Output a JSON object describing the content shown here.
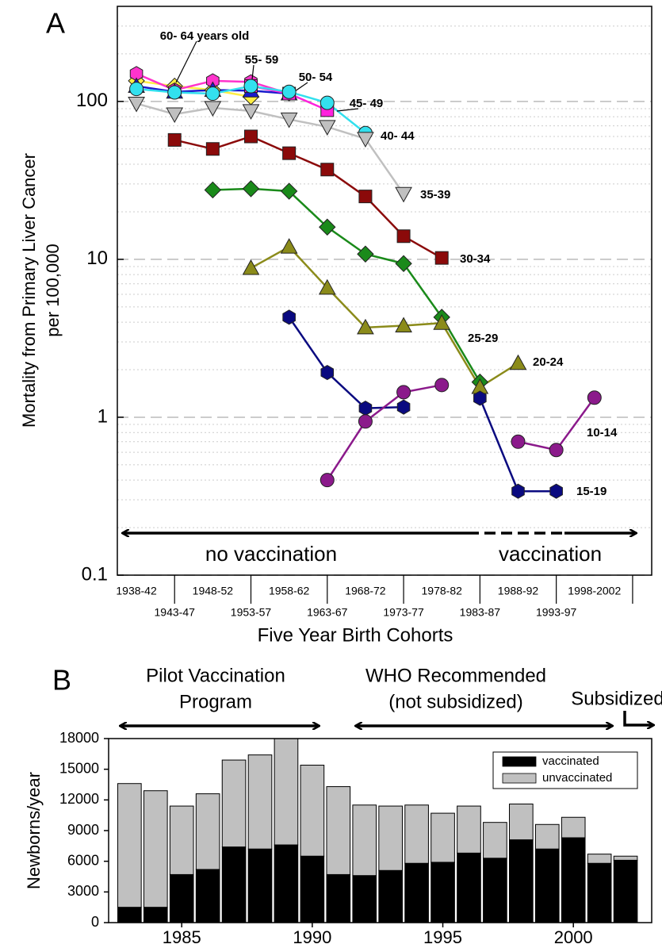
{
  "chart_data": [
    {
      "type": "line",
      "panel_label": "A",
      "log_scale": true,
      "grid": true,
      "minor_grid": true,
      "x_label": "Five Year Birth Cohorts",
      "y_label": [
        "Mortality from Primary Liver Cancer",
        "per 100,000"
      ],
      "annotations": [
        "no vaccination",
        "vaccination"
      ],
      "categories": [
        "1938-42",
        "1943-47",
        "1948-52",
        "1953-57",
        "1958-62",
        "1963-67",
        "1968-72",
        "1973-77",
        "1978-82",
        "1983-87",
        "1988-92",
        "1993-97",
        "1998-2002"
      ],
      "ylim": [
        0.1,
        400
      ],
      "yticks": [
        0.1,
        1,
        10,
        100
      ],
      "series": [
        {
          "name": "60- 64 years old",
          "color": "#ffee44",
          "marker": "diamond",
          "values": [
            135,
            125,
            118,
            107,
            null,
            null,
            null,
            null,
            null,
            null,
            null,
            null,
            null
          ]
        },
        {
          "name": "55- 59",
          "color": "#ff33cc",
          "marker": "hexagon",
          "values": [
            150,
            118,
            135,
            133,
            112,
            null,
            null,
            null,
            null,
            null,
            null,
            null,
            null
          ]
        },
        {
          "name": "50- 54",
          "color": "#1a1acc",
          "marker": "triangle",
          "values": [
            125,
            115,
            118,
            117,
            112,
            null,
            null,
            null,
            null,
            null,
            null,
            null,
            null
          ]
        },
        {
          "name": "45- 49",
          "color": "#ff22dd",
          "marker": "square",
          "values": [
            null,
            null,
            null,
            125,
            112,
            88,
            null,
            null,
            null,
            null,
            null,
            null,
            null
          ]
        },
        {
          "name": "40- 44",
          "color": "#33e0ee",
          "marker": "circle",
          "values": [
            120,
            114,
            112,
            125,
            115,
            98,
            63,
            null,
            null,
            null,
            null,
            null,
            null
          ]
        },
        {
          "name": "35-39",
          "color": "#c0c0c0",
          "marker": "triangle-down",
          "values": [
            97,
            83,
            91,
            87,
            77,
            69,
            58,
            26,
            null,
            null,
            null,
            null,
            null
          ]
        },
        {
          "name": "30-34",
          "color": "#8b0a0a",
          "marker": "square",
          "values": [
            null,
            57,
            50,
            60,
            47,
            37,
            25,
            14,
            10.2,
            null,
            null,
            null,
            null
          ]
        },
        {
          "name": "25-29",
          "color": "#1a8a1a",
          "marker": "diamond",
          "values": [
            null,
            null,
            27.5,
            28,
            27,
            16,
            10.8,
            9.4,
            4.3,
            1.67,
            null,
            null,
            null
          ]
        },
        {
          "name": "20-24",
          "color": "#8b8b1a",
          "marker": "triangle",
          "values": [
            null,
            null,
            null,
            8.8,
            12,
            6.6,
            3.7,
            3.8,
            3.95,
            1.55,
            2.2,
            null,
            null
          ]
        },
        {
          "name": "15-19",
          "color": "#0a0a80",
          "marker": "hexagon",
          "values": [
            null,
            null,
            null,
            null,
            4.3,
            1.92,
            1.14,
            1.16,
            null,
            1.32,
            0.34,
            0.34,
            null
          ]
        },
        {
          "name": "10-14",
          "color": "#8b1a8b",
          "marker": "circle",
          "values": [
            null,
            null,
            null,
            null,
            null,
            0.4,
            0.94,
            1.44,
            1.6,
            null,
            0.7,
            0.62,
            1.33
          ]
        }
      ]
    },
    {
      "type": "stacked-bar",
      "panel_label": "B",
      "y_label": "Newborns/year",
      "annotations": [
        "Pilot Vaccination",
        "Program",
        "WHO Recommended",
        "(not subsidized)",
        "Subsidized"
      ],
      "legend": "top-right",
      "x": [
        1983,
        1984,
        1985,
        1986,
        1987,
        1988,
        1989,
        1990,
        1991,
        1992,
        1993,
        1994,
        1995,
        1996,
        1997,
        1998,
        1999,
        2000,
        2001,
        2002
      ],
      "xlim": [
        1982.2,
        2003.0
      ],
      "xticks": [
        1985,
        1990,
        1995,
        2000
      ],
      "ylim": [
        0,
        18000
      ],
      "yticks": [
        0,
        3000,
        6000,
        9000,
        12000,
        15000,
        18000
      ],
      "series": [
        {
          "name": "vaccinated",
          "color": "#000000",
          "values": [
            1500,
            1500,
            4700,
            5200,
            7400,
            7200,
            7600,
            6500,
            4700,
            4600,
            5100,
            5800,
            5900,
            6800,
            6300,
            8100,
            7200,
            8300,
            5800,
            6100
          ]
        },
        {
          "name": "unvaccinated",
          "color": "#c0c0c0",
          "values": [
            12100,
            11400,
            6700,
            7400,
            8500,
            9200,
            10400,
            8900,
            8600,
            6900,
            6300,
            5700,
            4800,
            4600,
            3500,
            3500,
            2400,
            2000,
            900,
            400
          ]
        }
      ]
    }
  ]
}
